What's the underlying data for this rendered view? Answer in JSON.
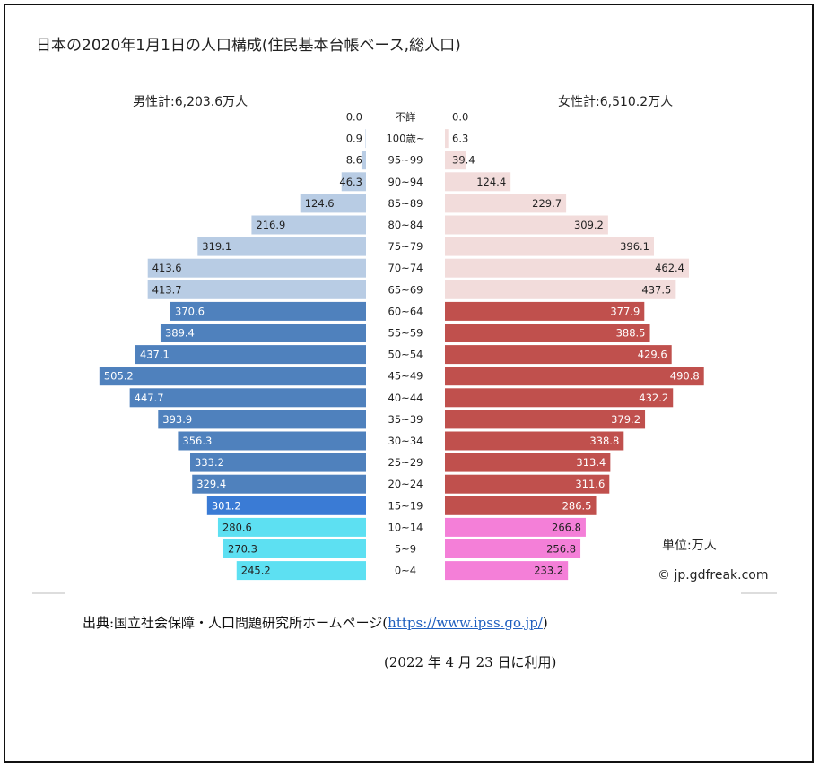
{
  "chart_data": {
    "type": "bar",
    "title": "日本の2020年1月1日の人口構成(住民基本台帳ベース,総人口)",
    "male_total_label": "男性計:6,203.6万人",
    "female_total_label": "女性計:6,510.2万人",
    "unit_label": "単位:万人",
    "copyright": "© jp.gdfreak.com",
    "categories": [
      "不詳",
      "100歳~",
      "95~99",
      "90~94",
      "85~89",
      "80~84",
      "75~79",
      "70~74",
      "65~69",
      "60~64",
      "55~59",
      "50~54",
      "45~49",
      "40~44",
      "35~39",
      "30~34",
      "25~29",
      "20~24",
      "15~19",
      "10~14",
      "5~9",
      "0~4"
    ],
    "series": [
      {
        "name": "男性",
        "values": [
          0.0,
          0.9,
          8.6,
          46.3,
          124.6,
          216.9,
          319.1,
          413.6,
          413.7,
          370.6,
          389.4,
          437.1,
          505.2,
          447.7,
          393.9,
          356.3,
          333.2,
          329.4,
          301.2,
          280.6,
          270.3,
          245.2
        ]
      },
      {
        "name": "女性",
        "values": [
          0.0,
          6.3,
          39.4,
          124.4,
          229.7,
          309.2,
          396.1,
          462.4,
          437.5,
          377.9,
          388.5,
          429.6,
          490.8,
          432.2,
          379.2,
          338.8,
          313.4,
          311.6,
          286.5,
          266.8,
          256.8,
          233.2
        ]
      }
    ],
    "labels": {
      "male": [
        "0.0",
        "0.9",
        "8.6",
        "46.3",
        "124.6",
        "216.9",
        "319.1",
        "413.6",
        "413.7",
        "370.6",
        "389.4",
        "437.1",
        "505.2",
        "447.7",
        "393.9",
        "356.3",
        "333.2",
        "329.4",
        "301.2",
        "280.6",
        "270.3",
        "245.2"
      ],
      "female": [
        "0.0",
        "6.3",
        "39.4",
        "124.4",
        "229.7",
        "309.2",
        "396.1",
        "462.4",
        "437.5",
        "377.9",
        "388.5",
        "429.6",
        "490.8",
        "432.2",
        "379.2",
        "338.8",
        "313.4",
        "311.6",
        "286.5",
        "266.8",
        "256.8",
        "233.2"
      ]
    },
    "colors": {
      "male_elderly": "#b8cce4",
      "male_working": "#4f81bd",
      "male_15_19": "#3a7bd5",
      "male_young": "#5de0f2",
      "female_elderly": "#f2dcdb",
      "female_working": "#c0504d",
      "female_young": "#f47fd8"
    },
    "xlim": [
      0,
      510
    ]
  },
  "source": {
    "prefix": "出典:国立社会保障・人口問題研究所ホームページ(",
    "link": "https://www.ipss.go.jp/",
    "suffix": ")"
  },
  "usage_note": "(2022 年 4 月 23 日に利用)"
}
